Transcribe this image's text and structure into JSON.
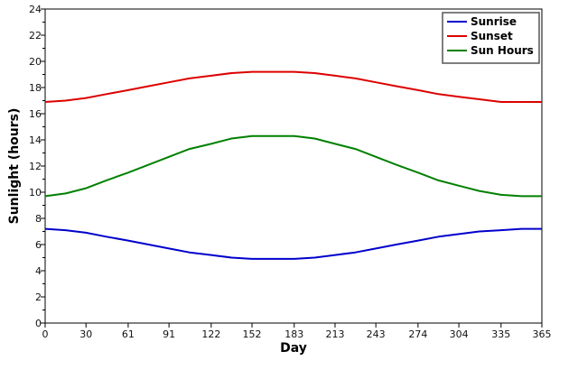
{
  "chart_data": {
    "type": "line",
    "xlabel": "Day",
    "ylabel": "Sunlight (hours)",
    "xlim": [
      0,
      365
    ],
    "ylim": [
      0,
      24
    ],
    "x_ticks": [
      "0",
      "30",
      "61",
      "91",
      "122",
      "152",
      "183",
      "213",
      "243",
      "274",
      "304",
      "335",
      "365"
    ],
    "y_ticks": [
      "0",
      "2",
      "4",
      "6",
      "8",
      "10",
      "12",
      "14",
      "16",
      "18",
      "20",
      "22",
      "24"
    ],
    "grid": false,
    "legend_position": "top-right",
    "x": [
      0,
      15,
      30,
      45,
      61,
      76,
      91,
      106,
      122,
      137,
      152,
      167,
      183,
      198,
      213,
      228,
      243,
      258,
      274,
      289,
      304,
      319,
      335,
      350,
      365
    ],
    "series": [
      {
        "name": "Sunrise",
        "color": "#0000cc",
        "values": [
          7.2,
          7.1,
          6.9,
          6.6,
          6.3,
          6.0,
          5.7,
          5.4,
          5.2,
          5.0,
          4.9,
          4.9,
          4.9,
          5.0,
          5.2,
          5.4,
          5.7,
          6.0,
          6.3,
          6.6,
          6.8,
          7.0,
          7.1,
          7.2,
          7.2
        ]
      },
      {
        "name": "Sunset",
        "color": "#dd0000",
        "values": [
          16.9,
          17.0,
          17.2,
          17.5,
          17.8,
          18.1,
          18.4,
          18.7,
          18.9,
          19.1,
          19.2,
          19.2,
          19.2,
          19.1,
          18.9,
          18.7,
          18.4,
          18.1,
          17.8,
          17.5,
          17.3,
          17.1,
          16.9,
          16.9,
          16.9
        ]
      },
      {
        "name": "Sun Hours",
        "color": "#008000",
        "values": [
          9.7,
          9.9,
          10.3,
          10.9,
          11.5,
          12.1,
          12.7,
          13.3,
          13.7,
          14.1,
          14.3,
          14.3,
          14.3,
          14.1,
          13.7,
          13.3,
          12.7,
          12.1,
          11.5,
          10.9,
          10.5,
          10.1,
          9.8,
          9.7,
          9.7
        ]
      }
    ]
  }
}
